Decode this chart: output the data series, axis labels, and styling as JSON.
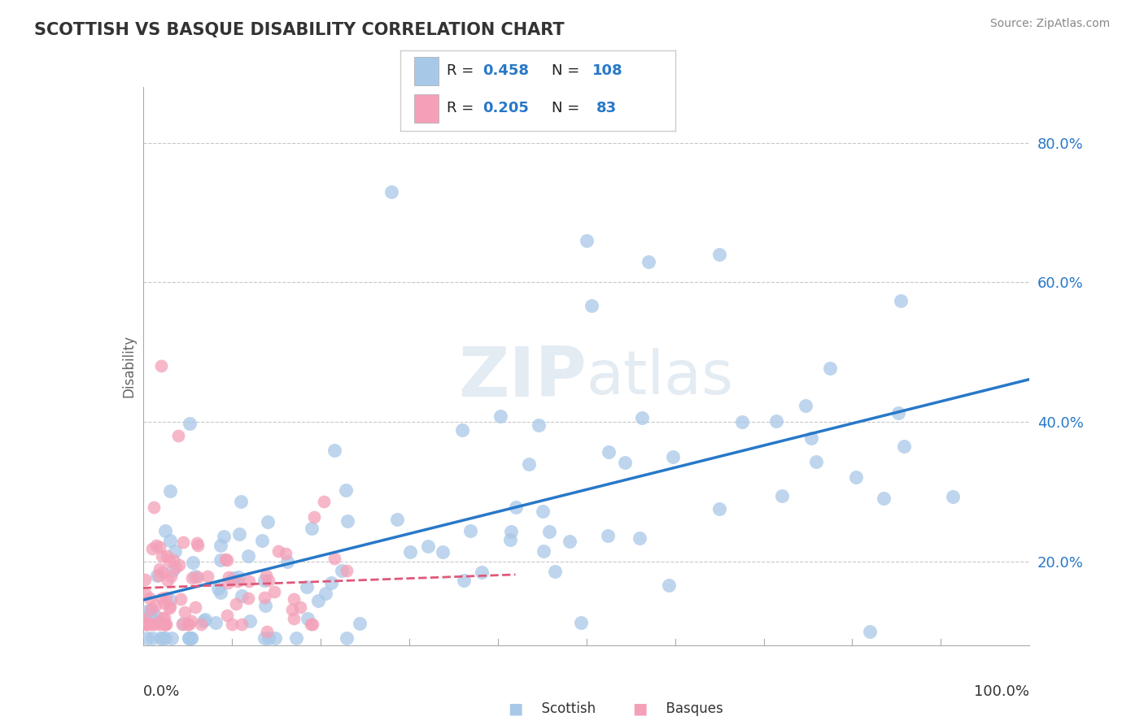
{
  "title": "SCOTTISH VS BASQUE DISABILITY CORRELATION CHART",
  "source": "Source: ZipAtlas.com",
  "ylabel": "Disability",
  "xlim": [
    0.0,
    1.0
  ],
  "ylim": [
    0.08,
    0.88
  ],
  "scottish_R": 0.458,
  "scottish_N": 108,
  "basque_R": 0.205,
  "basque_N": 83,
  "scottish_color": "#a8c8e8",
  "basque_color": "#f4a0b8",
  "scottish_line_color": "#2878c8",
  "basque_line_color": "#e05878",
  "title_color": "#333333",
  "grid_color": "#c8c8c8",
  "background_color": "#ffffff",
  "legend_text_color": "#2878c8",
  "ytick_vals": [
    0.2,
    0.4,
    0.6,
    0.8
  ],
  "ytick_lbls": [
    "20.0%",
    "40.0%",
    "60.0%",
    "80.0%"
  ],
  "scottish_seed": 42,
  "basque_seed": 7
}
